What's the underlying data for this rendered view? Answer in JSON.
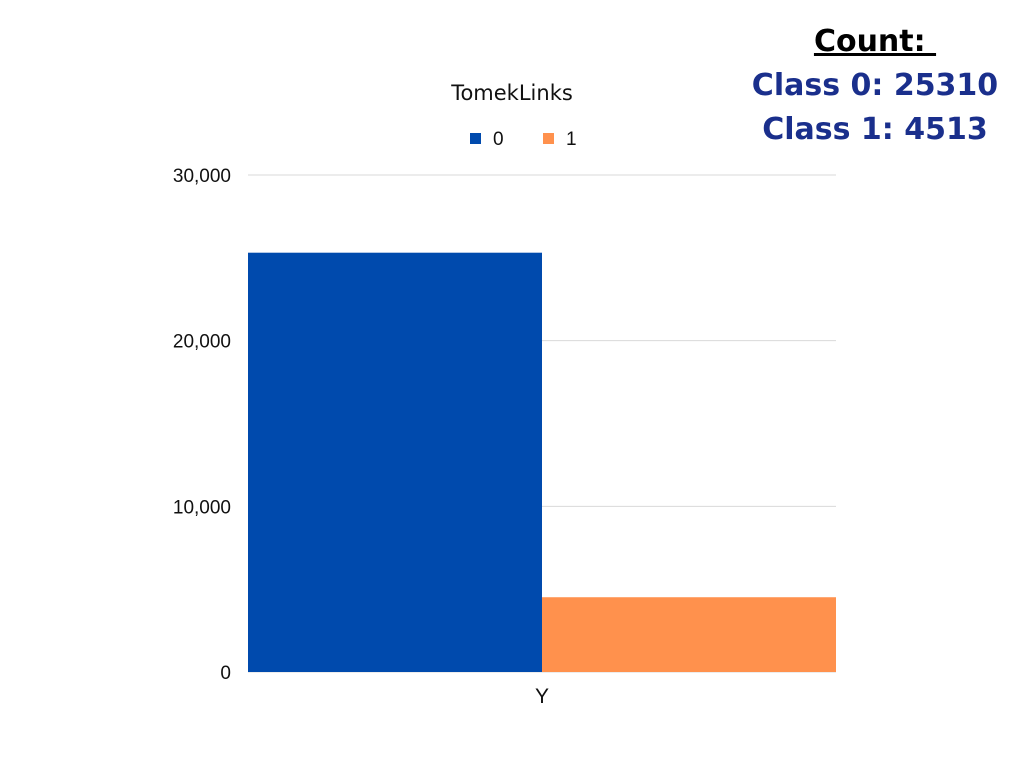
{
  "annotation": {
    "heading": "Count: ",
    "lines": [
      "Class 0: 25310",
      "Class 1: 4513"
    ]
  },
  "chart_data": {
    "type": "bar",
    "title": "TomekLinks",
    "categories": [
      "Y"
    ],
    "series": [
      {
        "name": "0",
        "values": [
          25310
        ],
        "color": "#004aad"
      },
      {
        "name": "1",
        "values": [
          4513
        ],
        "color": "#ff914d"
      }
    ],
    "xlabel": "",
    "ylabel": "",
    "ylim": [
      0,
      30000
    ],
    "yticks": [
      0,
      10000,
      20000,
      30000
    ],
    "ytick_labels": [
      "0",
      "10,000",
      "20,000",
      "30,000"
    ],
    "legend_position": "top",
    "grid": true
  }
}
